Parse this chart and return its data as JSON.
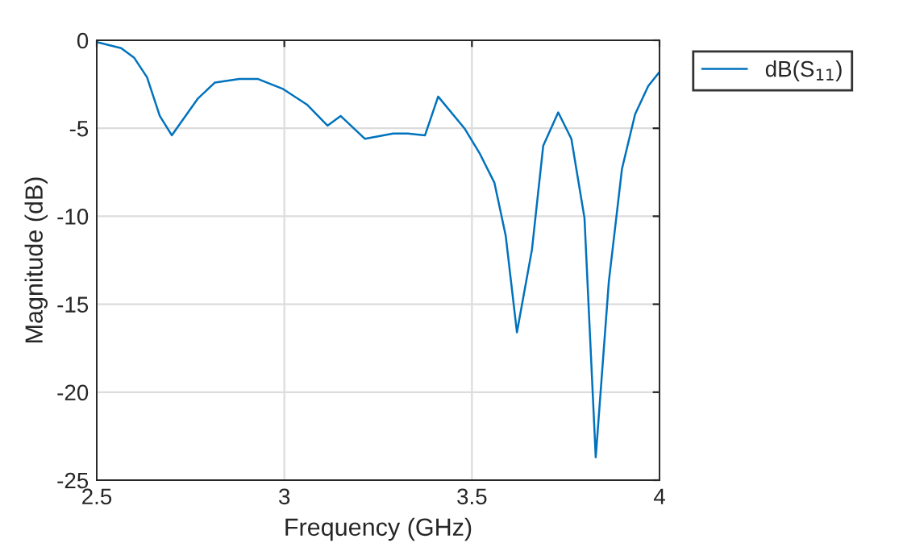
{
  "chart_data": {
    "type": "line",
    "xlabel": "Frequency (GHz)",
    "ylabel": "Magnitude (dB)",
    "xlim": [
      2.5,
      4
    ],
    "xticks": [
      2.5,
      3,
      3.5,
      4
    ],
    "ylim": [
      -25,
      0
    ],
    "yticks": [
      -25,
      -20,
      -15,
      -10,
      -5,
      0
    ],
    "grid": true,
    "legend": "top right",
    "x": [
      2.5,
      2.565,
      2.6,
      2.634,
      2.668,
      2.7,
      2.77,
      2.815,
      2.88,
      2.93,
      2.995,
      3.06,
      3.115,
      3.15,
      3.215,
      3.29,
      3.33,
      3.375,
      3.41,
      3.48,
      3.52,
      3.56,
      3.59,
      3.62,
      3.66,
      3.69,
      3.73,
      3.765,
      3.8,
      3.83,
      3.865,
      3.9,
      3.935,
      3.97,
      4.0
    ],
    "series": [
      {
        "name": "dB(S$_{11}$)",
        "color": "#0072bd",
        "values": [
          -0.1,
          -0.45,
          -1.0,
          -2.1,
          -4.3,
          -5.4,
          -3.3,
          -2.4,
          -2.2,
          -2.2,
          -2.75,
          -3.65,
          -4.85,
          -4.3,
          -5.6,
          -5.3,
          -5.3,
          -5.4,
          -3.2,
          -5.0,
          -6.4,
          -8.1,
          -11.1,
          -16.6,
          -11.9,
          -6.0,
          -4.1,
          -5.6,
          -10.1,
          -23.7,
          -13.7,
          -7.3,
          -4.2,
          -2.6,
          -1.8
        ]
      }
    ]
  }
}
